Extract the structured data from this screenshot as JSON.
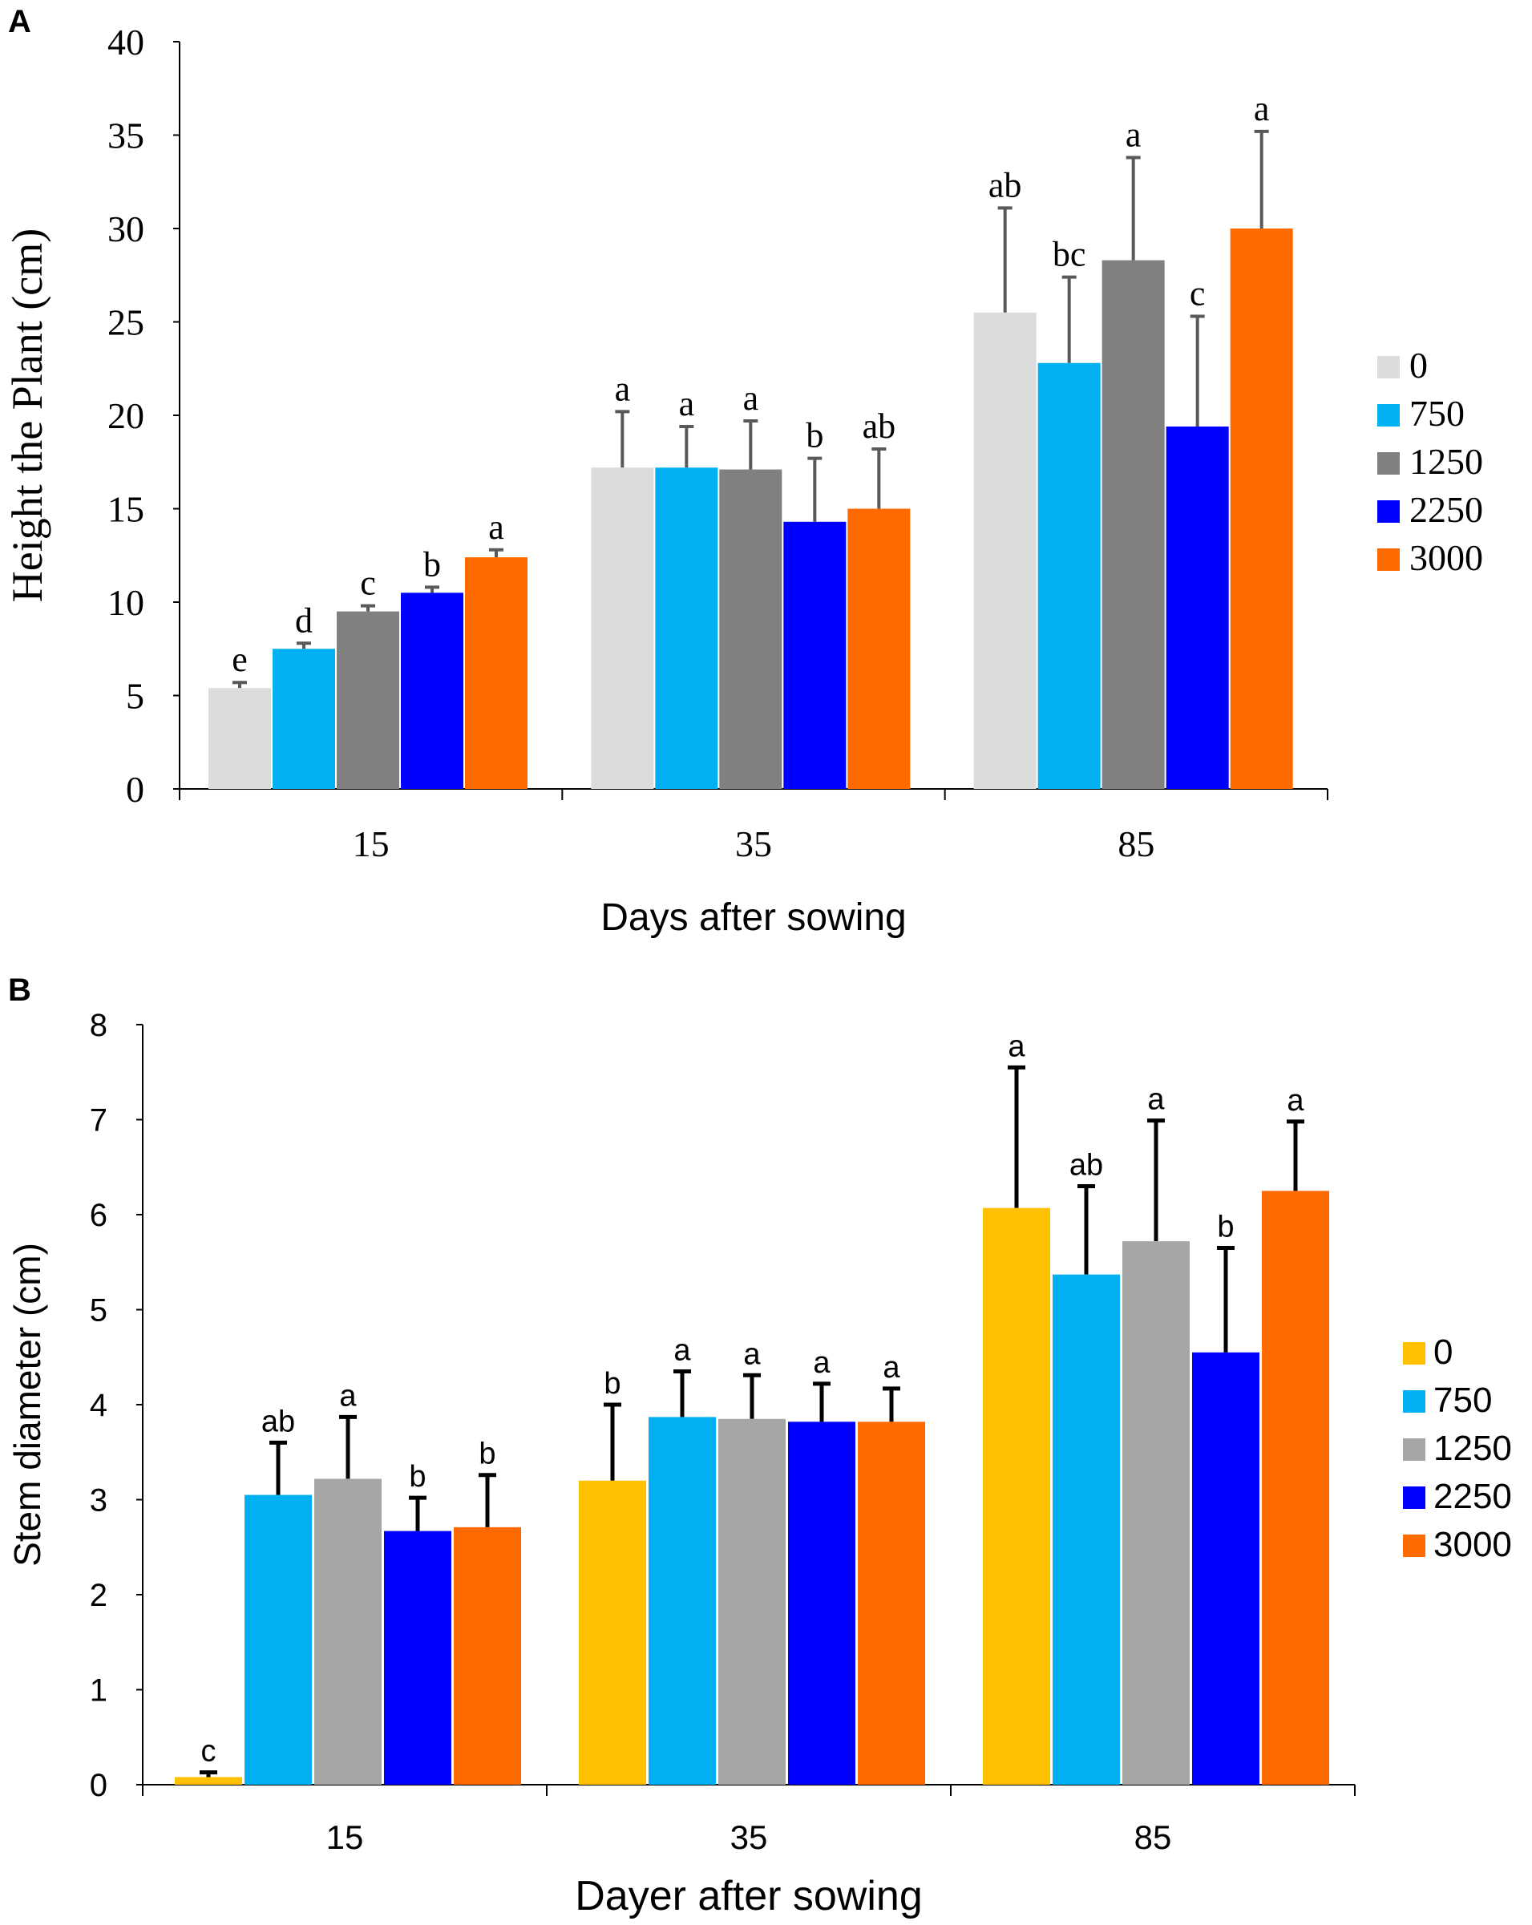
{
  "chart_data": [
    {
      "type": "bar",
      "panel_label": "A",
      "xlabel": "Days after sowing",
      "ylabel": "Height the Plant (cm)",
      "ylim": [
        0,
        40
      ],
      "yticks": [
        "0",
        "5",
        "10",
        "15",
        "20",
        "25",
        "30",
        "35",
        "40"
      ],
      "categories": [
        "15",
        "35",
        "85"
      ],
      "legend_position": "right",
      "series": [
        {
          "name": "0",
          "color": "#DCDCDC",
          "values": [
            5.4,
            17.2,
            25.5
          ],
          "errors": [
            0.3,
            3.0,
            5.6
          ],
          "letters": [
            "e",
            "a",
            "ab"
          ]
        },
        {
          "name": "750",
          "color": "#00B0F0",
          "values": [
            7.5,
            17.2,
            22.8
          ],
          "errors": [
            0.3,
            2.2,
            4.6
          ],
          "letters": [
            "d",
            "a",
            "bc"
          ]
        },
        {
          "name": "1250",
          "color": "#808080",
          "values": [
            9.5,
            17.1,
            28.3
          ],
          "errors": [
            0.3,
            2.6,
            5.5
          ],
          "letters": [
            "c",
            "a",
            "a"
          ]
        },
        {
          "name": "2250",
          "color": "#0000FF",
          "values": [
            10.5,
            14.3,
            19.4
          ],
          "errors": [
            0.3,
            3.4,
            5.9
          ],
          "letters": [
            "b",
            "b",
            "c"
          ]
        },
        {
          "name": "3000",
          "color": "#FF6A00",
          "values": [
            12.4,
            15.0,
            30.0
          ],
          "errors": [
            0.4,
            3.2,
            5.2
          ],
          "letters": [
            "a",
            "ab",
            "a"
          ]
        }
      ]
    },
    {
      "type": "bar",
      "panel_label": "B",
      "xlabel": "Dayer after sowing",
      "ylabel": "Stem diameter (cm)",
      "ylim": [
        0,
        8
      ],
      "yticks": [
        "0",
        "1",
        "2",
        "3",
        "4",
        "5",
        "6",
        "7",
        "8"
      ],
      "categories": [
        "15",
        "35",
        "85"
      ],
      "legend_position": "right",
      "series": [
        {
          "name": "0",
          "color": "#FFC000",
          "values": [
            0.08,
            3.2,
            6.07
          ],
          "errors": [
            0.05,
            0.8,
            1.48
          ],
          "letters": [
            "c",
            "b",
            "a"
          ]
        },
        {
          "name": "750",
          "color": "#00B0F0",
          "values": [
            3.05,
            3.87,
            5.37
          ],
          "errors": [
            0.55,
            0.48,
            0.93
          ],
          "letters": [
            "ab",
            "a",
            "ab"
          ]
        },
        {
          "name": "1250",
          "color": "#A6A6A6",
          "values": [
            3.22,
            3.85,
            5.72
          ],
          "errors": [
            0.65,
            0.46,
            1.27
          ],
          "letters": [
            "a",
            "a",
            "a"
          ]
        },
        {
          "name": "2250",
          "color": "#0000FF",
          "values": [
            2.67,
            3.82,
            4.55
          ],
          "errors": [
            0.35,
            0.4,
            1.1
          ],
          "letters": [
            "b",
            "a",
            "b"
          ]
        },
        {
          "name": "3000",
          "color": "#FF6A00",
          "values": [
            2.71,
            3.82,
            6.25
          ],
          "errors": [
            0.55,
            0.35,
            0.73
          ],
          "letters": [
            "b",
            "a",
            "a"
          ]
        }
      ]
    }
  ]
}
